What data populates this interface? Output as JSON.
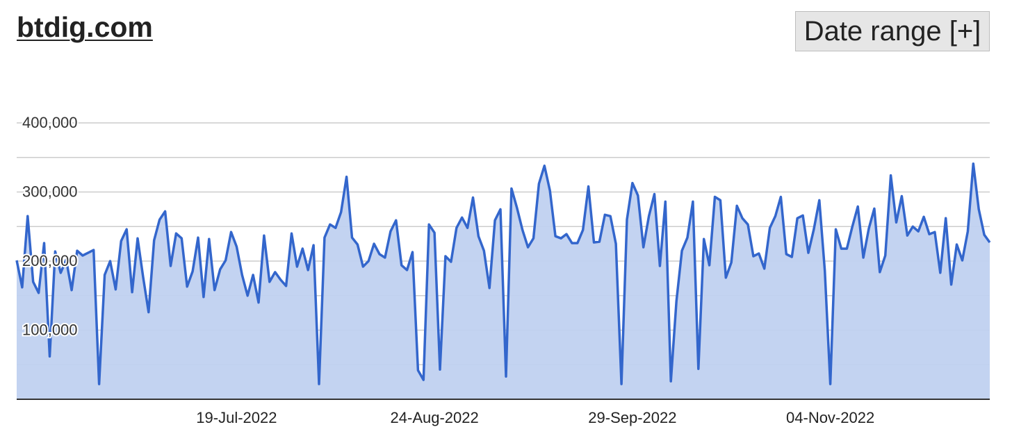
{
  "header": {
    "site_title": "btdig.com",
    "date_range_label": "Date range [+]"
  },
  "chart_data": {
    "type": "area",
    "title": "",
    "xlabel": "",
    "ylabel": "",
    "grid": true,
    "ylim": [
      0,
      400000
    ],
    "y_ticks": [
      100000,
      200000,
      300000,
      400000
    ],
    "y_tick_labels": [
      "100,000",
      "200,000",
      "300,000",
      "400,000"
    ],
    "x_start": "2022-06-09",
    "x_ticks": [
      "2022-07-19",
      "2022-08-24",
      "2022-09-29",
      "2022-11-04"
    ],
    "x_tick_labels": [
      "19-Jul-2022",
      "24-Aug-2022",
      "29-Sep-2022",
      "04-Nov-2022"
    ],
    "colors": {
      "line": "#3366cc",
      "fill": "#c0d1f0",
      "grid": "#cccccc",
      "axis": "#333333"
    },
    "series": [
      {
        "values": [
          201000,
          162000,
          265000,
          170000,
          154000,
          226000,
          62000,
          214000,
          183000,
          202000,
          158000,
          215000,
          208000,
          212000,
          216000,
          22000,
          180000,
          200000,
          159000,
          229000,
          246000,
          155000,
          233000,
          177000,
          126000,
          230000,
          260000,
          272000,
          193000,
          240000,
          233000,
          163000,
          185000,
          234000,
          148000,
          232000,
          158000,
          188000,
          201000,
          242000,
          221000,
          180000,
          150000,
          180000,
          140000,
          237000,
          170000,
          184000,
          173000,
          164000,
          240000,
          192000,
          218000,
          187000,
          223000,
          22000,
          234000,
          253000,
          248000,
          271000,
          322000,
          234000,
          224000,
          192000,
          200000,
          225000,
          210000,
          205000,
          243000,
          259000,
          194000,
          187000,
          213000,
          42000,
          28000,
          253000,
          241000,
          43000,
          207000,
          199000,
          248000,
          263000,
          248000,
          292000,
          236000,
          215000,
          161000,
          259000,
          275000,
          33000,
          305000,
          277000,
          245000,
          220000,
          233000,
          312000,
          338000,
          302000,
          236000,
          233000,
          239000,
          226000,
          226000,
          245000,
          308000,
          227000,
          228000,
          267000,
          265000,
          225000,
          22000,
          260000,
          313000,
          295000,
          220000,
          265000,
          297000,
          193000,
          286000,
          26000,
          142000,
          215000,
          234000,
          286000,
          44000,
          232000,
          194000,
          293000,
          288000,
          176000,
          198000,
          280000,
          262000,
          253000,
          207000,
          211000,
          189000,
          248000,
          265000,
          293000,
          210000,
          206000,
          262000,
          266000,
          212000,
          246000,
          288000,
          186000,
          22000,
          246000,
          218000,
          218000,
          250000,
          279000,
          205000,
          247000,
          276000,
          184000,
          208000,
          324000,
          256000,
          294000,
          237000,
          250000,
          243000,
          264000,
          239000,
          242000,
          183000,
          262000,
          166000,
          224000,
          201000,
          243000,
          341000,
          275000,
          238000,
          227000
        ]
      }
    ]
  }
}
